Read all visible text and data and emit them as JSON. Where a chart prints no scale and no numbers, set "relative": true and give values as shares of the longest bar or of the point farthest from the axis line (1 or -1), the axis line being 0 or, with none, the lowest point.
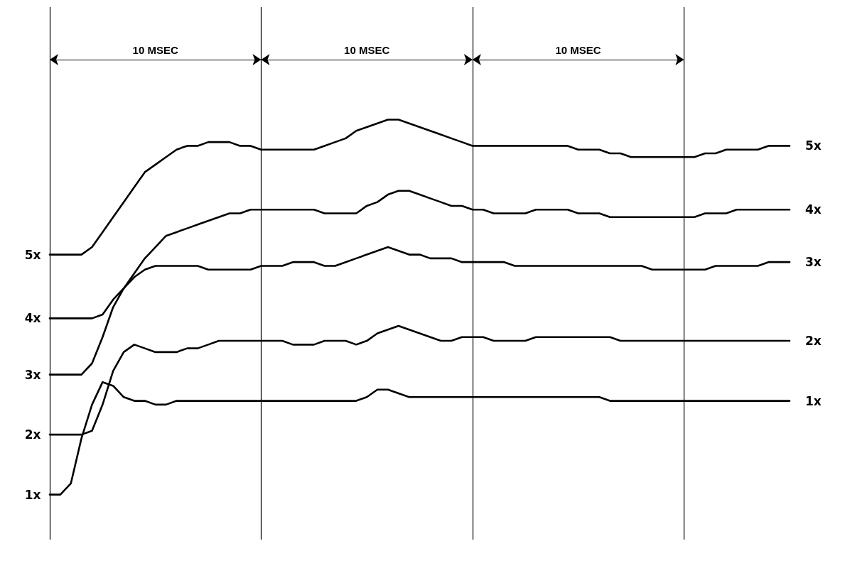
{
  "chart_data": {
    "type": "line",
    "relative": true,
    "color": "#000000",
    "marker": "none",
    "line_style": "solid",
    "grid": "x",
    "legend": false,
    "tick_labels": false,
    "categories": [
      null,
      null,
      null,
      null,
      null,
      null,
      null,
      null,
      null,
      null,
      null,
      null,
      null,
      null,
      null,
      null,
      null,
      null,
      null,
      null,
      null,
      null,
      null,
      null,
      null,
      null,
      null,
      null,
      null,
      null,
      null,
      null,
      null,
      null,
      null,
      null,
      null,
      null,
      null,
      null,
      null,
      null,
      null,
      null,
      null,
      null,
      null,
      null,
      null,
      null,
      null,
      null,
      null,
      null,
      null,
      null,
      null,
      null,
      null,
      null,
      null,
      null,
      null,
      null,
      null,
      null,
      null,
      null,
      null,
      null,
      null
    ],
    "annotations": [
      "10 MSEC",
      "10 MSEC",
      "10 MSEC",
      "5x",
      "4x",
      "3x",
      "2x",
      "1x"
    ],
    "series": [
      {
        "name": "5x",
        "values": [
          0.64,
          0.64,
          0.64,
          0.64,
          0.66,
          0.7,
          0.74,
          0.78,
          0.82,
          0.86,
          0.88,
          0.9,
          0.92,
          0.93,
          0.93,
          0.94,
          0.94,
          0.94,
          0.93,
          0.93,
          0.92,
          0.92,
          0.92,
          0.92,
          0.92,
          0.92,
          0.93,
          0.94,
          0.95,
          0.97,
          0.98,
          0.99,
          1.0,
          1.0,
          0.99,
          0.98,
          0.97,
          0.96,
          0.95,
          0.94,
          0.93,
          0.93,
          0.93,
          0.93,
          0.93,
          0.93,
          0.93,
          0.93,
          0.93,
          0.93,
          0.92,
          0.92,
          0.92,
          0.91,
          0.91,
          0.9,
          0.9,
          0.9,
          0.9,
          0.9,
          0.9,
          0.9,
          0.91,
          0.91,
          0.92,
          0.92,
          0.92,
          0.92,
          0.93,
          0.93,
          0.93
        ]
      },
      {
        "name": "4x",
        "values": [
          0.47,
          0.47,
          0.47,
          0.47,
          0.47,
          0.48,
          0.52,
          0.55,
          0.59,
          0.63,
          0.66,
          0.69,
          0.7,
          0.71,
          0.72,
          0.73,
          0.74,
          0.75,
          0.75,
          0.76,
          0.76,
          0.76,
          0.76,
          0.76,
          0.76,
          0.76,
          0.75,
          0.75,
          0.75,
          0.75,
          0.77,
          0.78,
          0.8,
          0.81,
          0.81,
          0.8,
          0.79,
          0.78,
          0.77,
          0.77,
          0.76,
          0.76,
          0.75,
          0.75,
          0.75,
          0.75,
          0.76,
          0.76,
          0.76,
          0.76,
          0.75,
          0.75,
          0.75,
          0.74,
          0.74,
          0.74,
          0.74,
          0.74,
          0.74,
          0.74,
          0.74,
          0.74,
          0.75,
          0.75,
          0.75,
          0.76,
          0.76,
          0.76,
          0.76,
          0.76,
          0.76
        ]
      },
      {
        "name": "3x",
        "values": [
          0.32,
          0.32,
          0.32,
          0.32,
          0.35,
          0.42,
          0.5,
          0.55,
          0.58,
          0.6,
          0.61,
          0.61,
          0.61,
          0.61,
          0.61,
          0.6,
          0.6,
          0.6,
          0.6,
          0.6,
          0.61,
          0.61,
          0.61,
          0.62,
          0.62,
          0.62,
          0.61,
          0.61,
          0.62,
          0.63,
          0.64,
          0.65,
          0.66,
          0.65,
          0.64,
          0.64,
          0.63,
          0.63,
          0.63,
          0.62,
          0.62,
          0.62,
          0.62,
          0.62,
          0.61,
          0.61,
          0.61,
          0.61,
          0.61,
          0.61,
          0.61,
          0.61,
          0.61,
          0.61,
          0.61,
          0.61,
          0.61,
          0.6,
          0.6,
          0.6,
          0.6,
          0.6,
          0.6,
          0.61,
          0.61,
          0.61,
          0.61,
          0.61,
          0.62,
          0.62,
          0.62
        ]
      },
      {
        "name": "2x",
        "values": [
          0.16,
          0.16,
          0.16,
          0.16,
          0.17,
          0.24,
          0.33,
          0.38,
          0.4,
          0.39,
          0.38,
          0.38,
          0.38,
          0.39,
          0.39,
          0.4,
          0.41,
          0.41,
          0.41,
          0.41,
          0.41,
          0.41,
          0.41,
          0.4,
          0.4,
          0.4,
          0.41,
          0.41,
          0.41,
          0.4,
          0.41,
          0.43,
          0.44,
          0.45,
          0.44,
          0.43,
          0.42,
          0.41,
          0.41,
          0.42,
          0.42,
          0.42,
          0.41,
          0.41,
          0.41,
          0.41,
          0.42,
          0.42,
          0.42,
          0.42,
          0.42,
          0.42,
          0.42,
          0.42,
          0.41,
          0.41,
          0.41,
          0.41,
          0.41,
          0.41,
          0.41,
          0.41,
          0.41,
          0.41,
          0.41,
          0.41,
          0.41,
          0.41,
          0.41,
          0.41,
          0.41
        ]
      },
      {
        "name": "1x",
        "values": [
          0,
          0,
          0.03,
          0.15,
          0.24,
          0.3,
          0.29,
          0.26,
          0.25,
          0.25,
          0.24,
          0.24,
          0.25,
          0.25,
          0.25,
          0.25,
          0.25,
          0.25,
          0.25,
          0.25,
          0.25,
          0.25,
          0.25,
          0.25,
          0.25,
          0.25,
          0.25,
          0.25,
          0.25,
          0.25,
          0.26,
          0.28,
          0.28,
          0.27,
          0.26,
          0.26,
          0.26,
          0.26,
          0.26,
          0.26,
          0.26,
          0.26,
          0.26,
          0.26,
          0.26,
          0.26,
          0.26,
          0.26,
          0.26,
          0.26,
          0.26,
          0.26,
          0.26,
          0.25,
          0.25,
          0.25,
          0.25,
          0.25,
          0.25,
          0.25,
          0.25,
          0.25,
          0.25,
          0.25,
          0.25,
          0.25,
          0.25,
          0.25,
          0.25,
          0.25,
          0.25
        ]
      }
    ]
  }
}
